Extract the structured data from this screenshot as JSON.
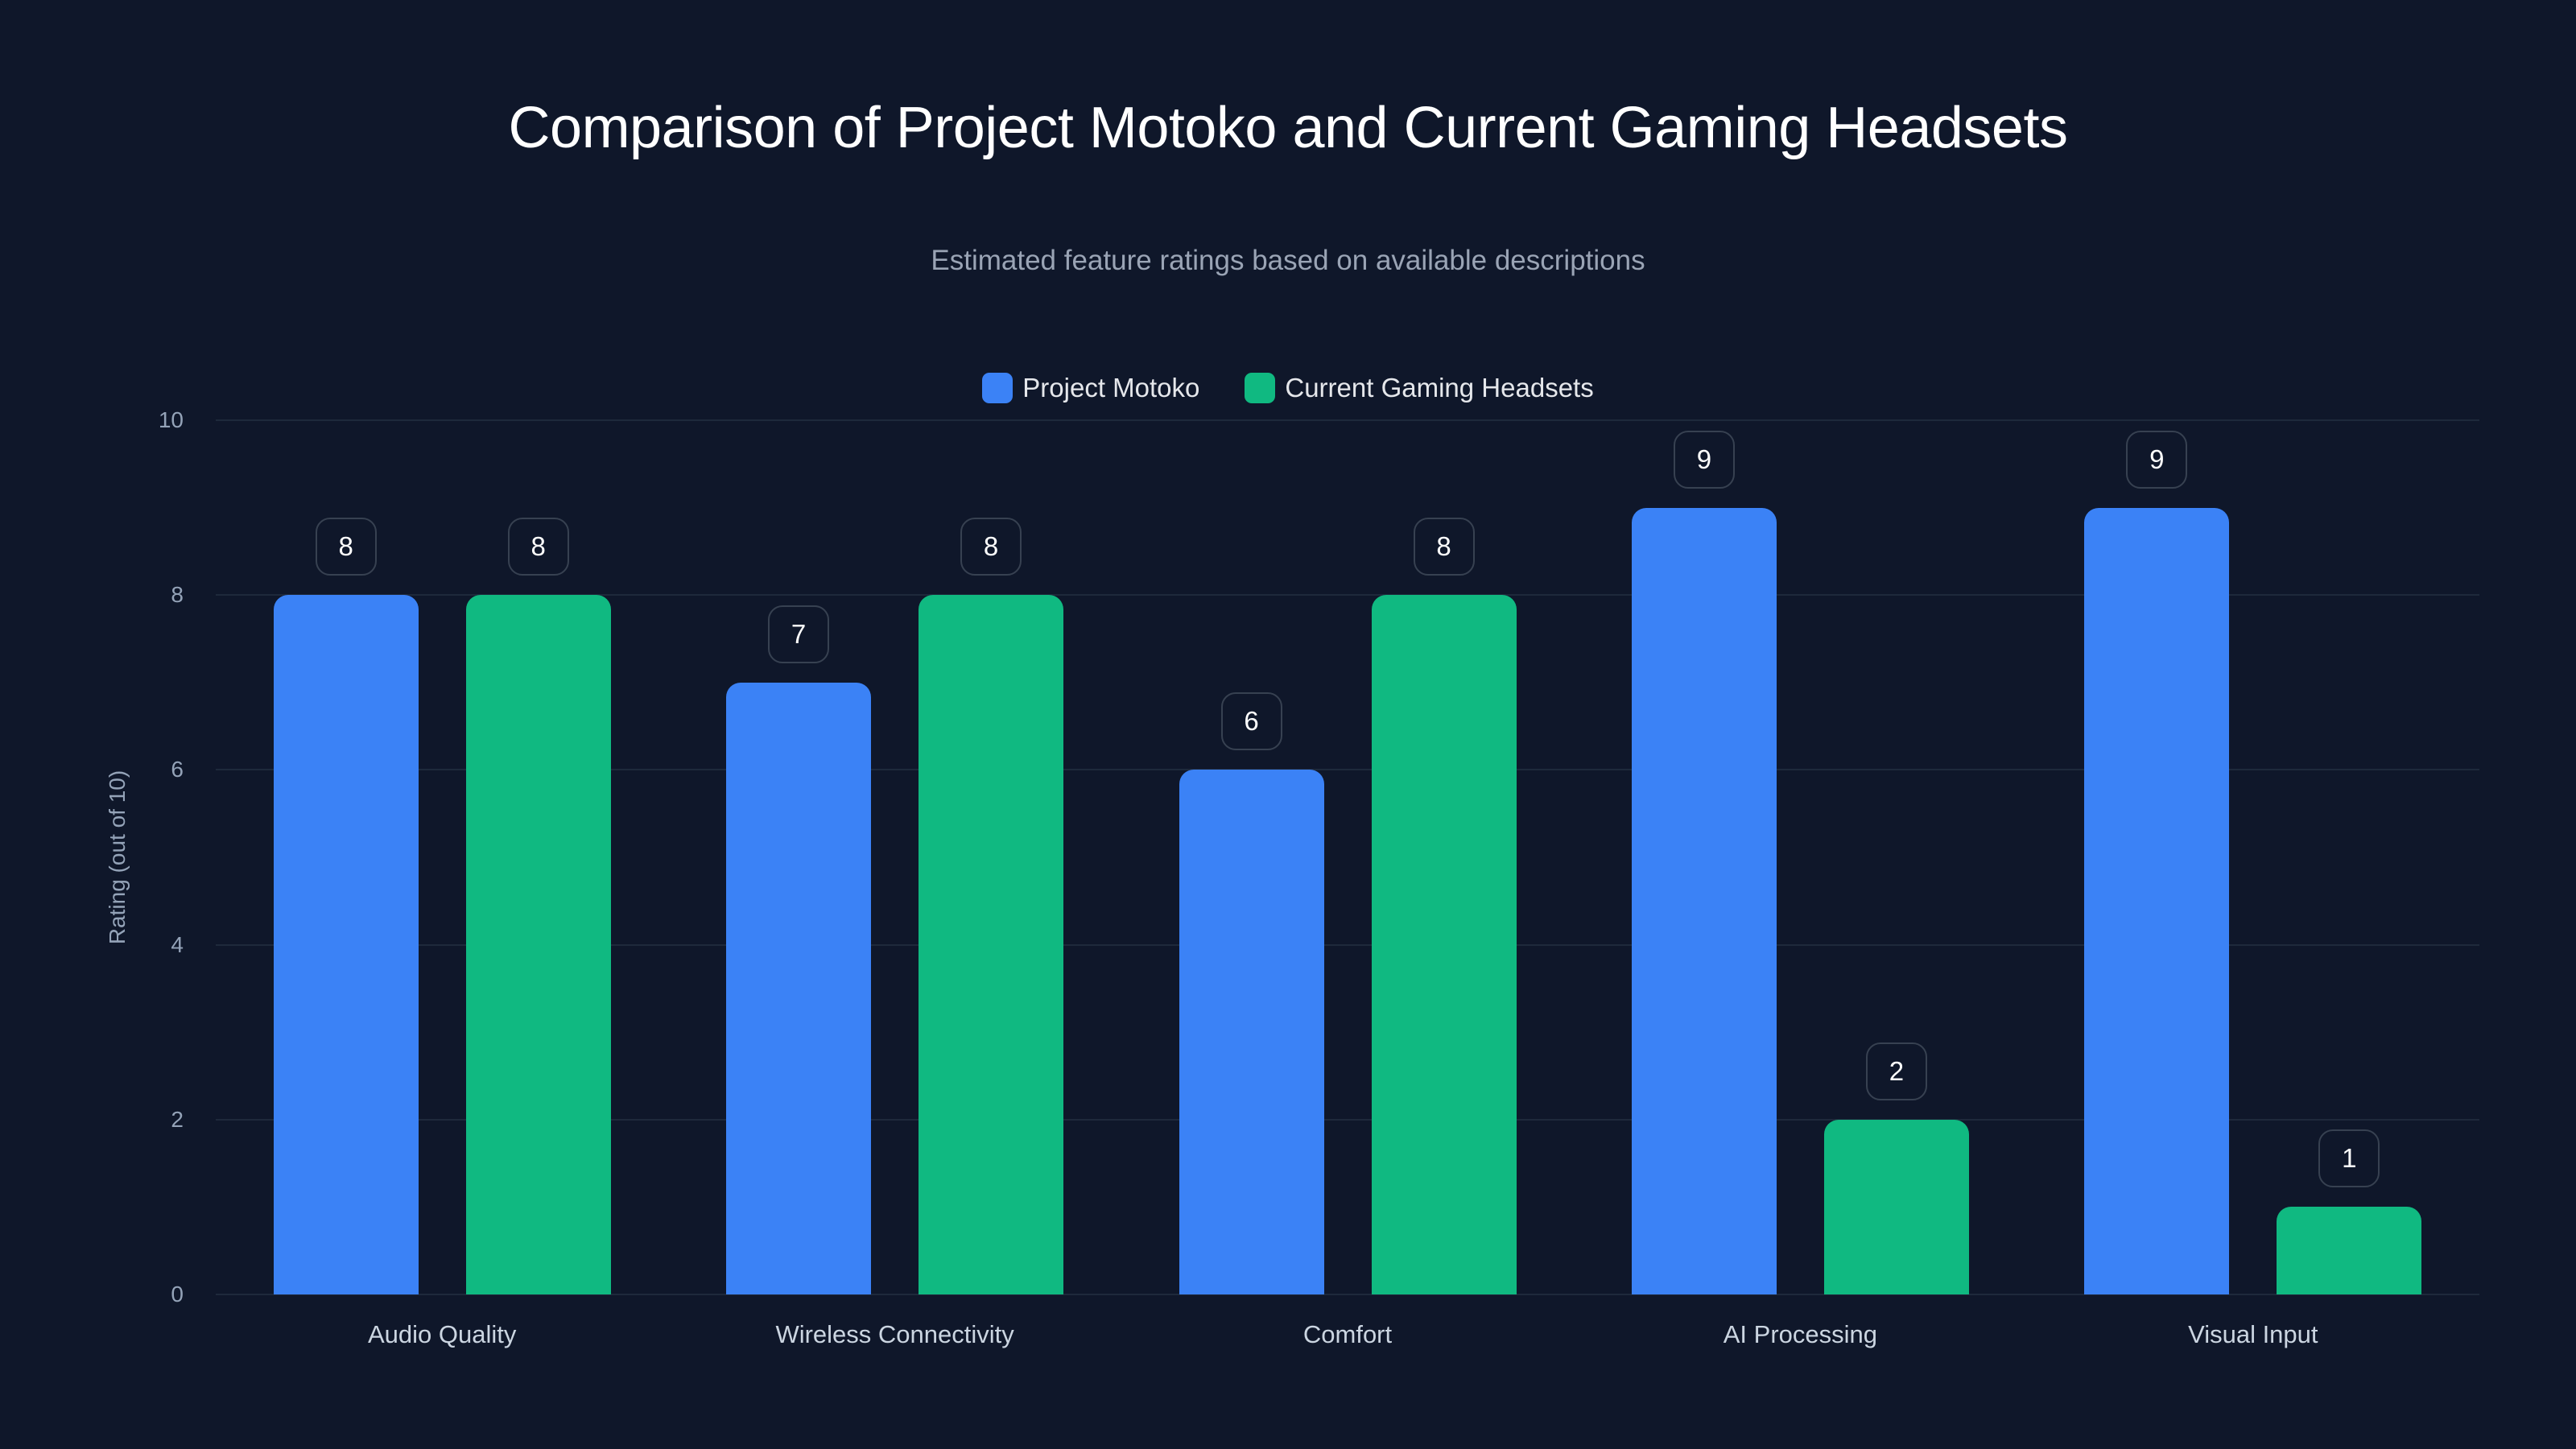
{
  "chart_data": {
    "type": "bar",
    "title": "Comparison of Project Motoko and Current Gaming Headsets",
    "subtitle": "Estimated feature ratings based on available descriptions",
    "xlabel": "",
    "ylabel": "Rating (out of 10)",
    "ylim": [
      0,
      10
    ],
    "yticks": [
      "0",
      "2",
      "4",
      "6",
      "8",
      "10"
    ],
    "grid": true,
    "legend_position": "top-center",
    "categories": [
      "Audio Quality",
      "Wireless Connectivity",
      "Comfort",
      "AI Processing",
      "Visual Input"
    ],
    "series": [
      {
        "name": "Project Motoko",
        "color": "#3b82f6",
        "values": [
          8,
          7,
          6,
          9,
          9
        ]
      },
      {
        "name": "Current Gaming Headsets",
        "color": "#10b981",
        "values": [
          8,
          8,
          8,
          2,
          1
        ]
      }
    ]
  },
  "colors": {
    "background": "#0f172a",
    "grid": "#1e293b",
    "label_border": "#374151"
  }
}
